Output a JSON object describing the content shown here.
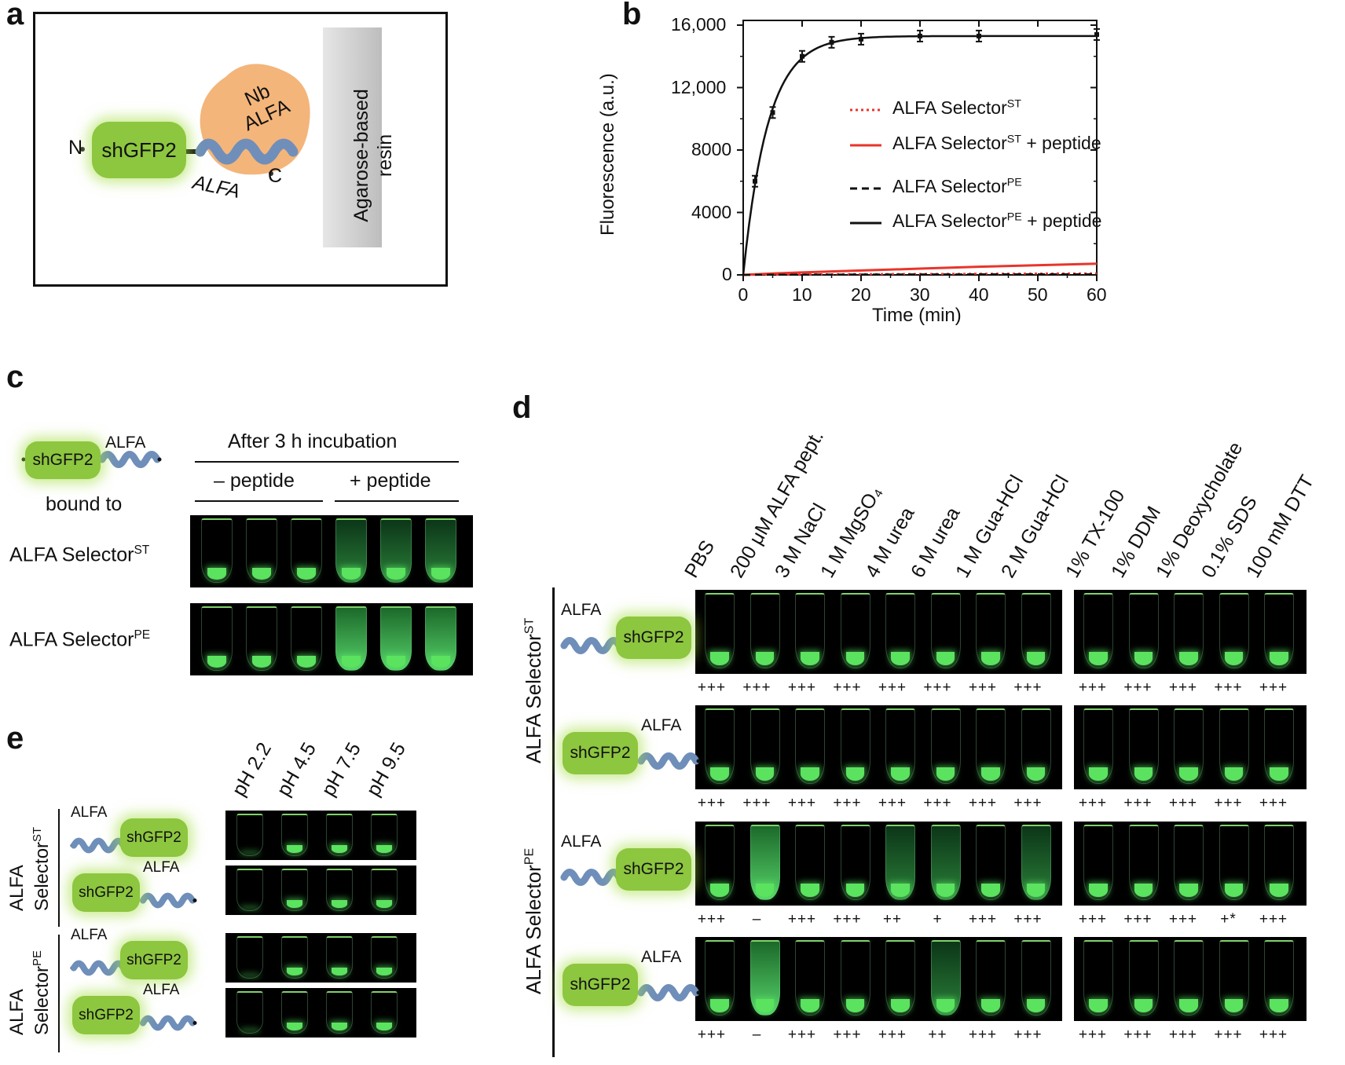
{
  "panel_labels": {
    "a": "a",
    "b": "b",
    "c": "c",
    "d": "d",
    "e": "e"
  },
  "panel_a": {
    "n_terminus": "N",
    "c_terminus": "C",
    "gfp": "shGFP2",
    "nb_line1": "Nb",
    "nb_line2": "ALFA",
    "tag": "ALFA",
    "resin_line1": "Agarose-based",
    "resin_line2": "resin"
  },
  "chart_data": {
    "type": "line",
    "title": "",
    "xlabel": "Time (min)",
    "ylabel": "Fluorescence (a.u.)",
    "xlim": [
      0,
      60
    ],
    "ylim": [
      0,
      16000
    ],
    "xticks": [
      0,
      10,
      20,
      30,
      40,
      50,
      60
    ],
    "yticks": [
      0,
      4000,
      8000,
      12000,
      16000
    ],
    "ytick_labels": [
      "0",
      "4000",
      "8000",
      "12,000",
      "16,000"
    ],
    "x": [
      0,
      2,
      5,
      10,
      15,
      20,
      30,
      40,
      60
    ],
    "series": [
      {
        "name": "ALFA Selector",
        "sup": "ST",
        "suffix": "",
        "style": "dotted",
        "color": "#e8352b",
        "values": [
          0,
          8,
          20,
          30,
          40,
          50,
          60,
          75,
          100
        ]
      },
      {
        "name": "ALFA Selector",
        "sup": "ST",
        "suffix": " + peptide",
        "style": "solid",
        "color": "#e8352b",
        "values": [
          0,
          40,
          90,
          160,
          220,
          280,
          400,
          520,
          720
        ]
      },
      {
        "name": "ALFA Selector",
        "sup": "PE",
        "suffix": "",
        "style": "dashed",
        "color": "#111111",
        "values": [
          0,
          5,
          10,
          15,
          20,
          25,
          30,
          35,
          40
        ]
      },
      {
        "name": "ALFA Selector",
        "sup": "PE",
        "suffix": " + peptide",
        "style": "solid",
        "color": "#111111",
        "values": [
          0,
          6000,
          10400,
          14000,
          14900,
          15100,
          15300,
          15300,
          15400
        ]
      }
    ],
    "legend": "center-right"
  },
  "panel_c": {
    "construct_tag": "ALFA",
    "construct_gfp": "shGFP2",
    "bound_to": "bound to",
    "header": "After 3 h incubation",
    "minus": "– peptide",
    "plus": "+ peptide",
    "rows": [
      {
        "name": "ALFA Selector",
        "sup": "ST"
      },
      {
        "name": "ALFA Selector",
        "sup": "PE"
      }
    ]
  },
  "panel_d": {
    "conditions": [
      "PBS",
      "200 μM ALFA pept.",
      "3 M NaCl",
      "1 M MgSO₄",
      "4 M urea",
      "6 M urea",
      "1 M Gua-HCl",
      "2 M Gua-HCl",
      "1% TX-100",
      "1% DDM",
      "1% Deoxycholate",
      "0.1% SDS",
      "100 mM DTT"
    ],
    "group_st": "ALFA Selector",
    "group_st_sup": "ST",
    "group_pe": "ALFA Selector",
    "group_pe_sup": "PE",
    "tag": "ALFA",
    "gfp": "shGFP2",
    "marks": [
      [
        "+++",
        "+++",
        "+++",
        "+++",
        "+++",
        "+++",
        "+++",
        "+++",
        "+++",
        "+++",
        "+++",
        "+++",
        "+++"
      ],
      [
        "+++",
        "+++",
        "+++",
        "+++",
        "+++",
        "+++",
        "+++",
        "+++",
        "+++",
        "+++",
        "+++",
        "+++",
        "+++"
      ],
      [
        "+++",
        "–",
        "+++",
        "+++",
        "++",
        "+",
        "+++",
        "+++",
        "+++",
        "+++",
        "+++",
        "+*",
        "+++"
      ],
      [
        "+++",
        "–",
        "+++",
        "+++",
        "+++",
        "++",
        "+++",
        "+++",
        "+++",
        "+++",
        "+++",
        "+++",
        "+++"
      ]
    ]
  },
  "panel_e": {
    "ph": [
      "pH 2.2",
      "pH 4.5",
      "pH 7.5",
      "pH 9.5"
    ],
    "group_st_line1": "ALFA",
    "group_st_line2": "Selector",
    "group_st_sup": "ST",
    "group_pe_line1": "ALFA",
    "group_pe_line2": "Selector",
    "group_pe_sup": "PE",
    "tag": "ALFA",
    "gfp": "shGFP2"
  },
  "colors": {
    "gfp": "#8dc63f",
    "tag": "#6f8fba",
    "nb": "#f4b57a",
    "line_red": "#e8352b"
  }
}
